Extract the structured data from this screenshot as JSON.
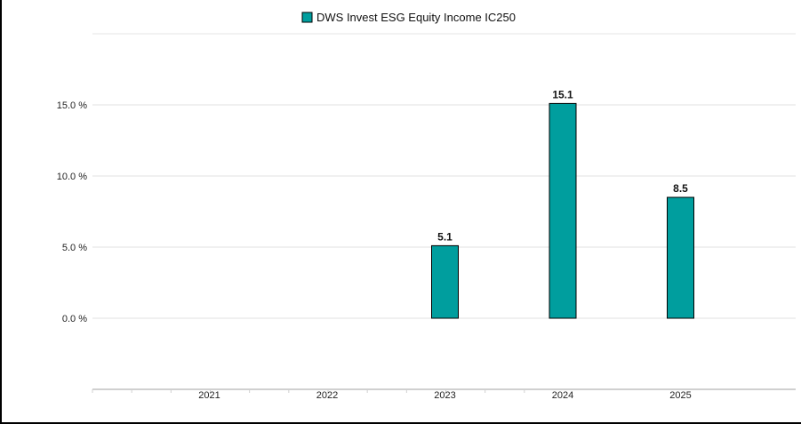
{
  "chart_data": {
    "type": "bar",
    "title": "",
    "xlabel": "",
    "ylabel": "",
    "categories": [
      "2021",
      "2022",
      "2023",
      "2024",
      "2025"
    ],
    "series": [
      {
        "name": "DWS Invest ESG Equity Income IC250",
        "values": [
          null,
          null,
          5.1,
          15.1,
          8.5
        ],
        "labels": [
          "",
          "",
          "5.1",
          "15.1",
          "8.5"
        ],
        "color": "#009E9E"
      }
    ],
    "ylim": [
      -5,
      20
    ],
    "yticks": [
      0,
      5,
      10,
      15
    ],
    "ytick_labels": [
      "0.0 %",
      "5.0 %",
      "10.0 %",
      "15.0 %"
    ],
    "grid": true,
    "legend_position": "top-center"
  }
}
